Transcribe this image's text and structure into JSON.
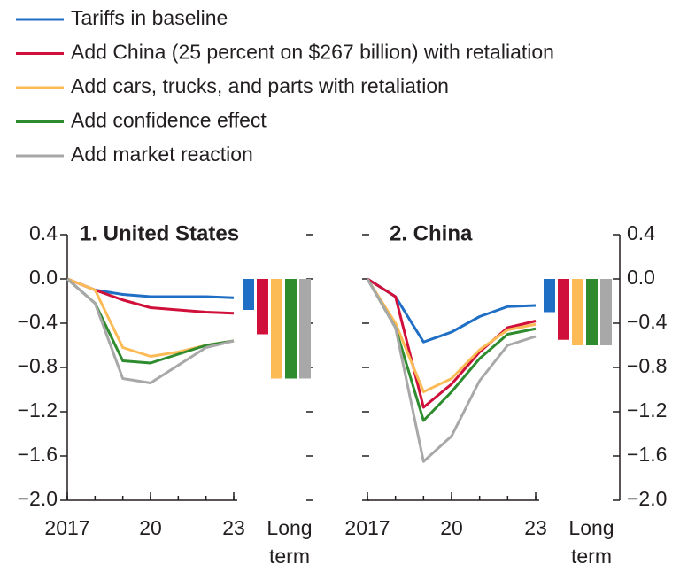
{
  "chart_data": [
    {
      "type": "line",
      "title": "1. United States",
      "yaxis_side": "left",
      "x": [
        2017,
        2018,
        2019,
        2020,
        2021,
        2022,
        2023
      ],
      "xlim": [
        2017,
        2023
      ],
      "xticks": [
        2017,
        {
          "value": 2020,
          "label": "20"
        },
        {
          "value": 2023,
          "label": "23"
        }
      ],
      "ylim": [
        -2.0,
        0.4
      ],
      "yticks": [
        0.4,
        {
          "value": 0,
          "label": "0.0"
        },
        {
          "value": -0.4,
          "label": "−0.4"
        },
        {
          "value": -0.8,
          "label": "−0.8"
        },
        {
          "value": -1.2,
          "label": "−1.2"
        },
        {
          "value": -1.6,
          "label": "−1.6"
        },
        {
          "value": -2.0,
          "label": "−2.0"
        }
      ],
      "long_term_label": "Long term",
      "series": [
        {
          "name": "Tariffs in baseline",
          "color": "#1f6fc5",
          "values": [
            0,
            -0.1,
            -0.14,
            -0.16,
            -0.16,
            -0.16,
            -0.17
          ],
          "long_term": -0.28
        },
        {
          "name": "Add China (25 percent on $267 billion) with retaliation",
          "color": "#d0103a",
          "values": [
            0,
            -0.1,
            -0.19,
            -0.26,
            -0.28,
            -0.3,
            -0.31
          ],
          "long_term": -0.5
        },
        {
          "name": "Add cars, trucks, and parts with retaliation",
          "color": "#fdbb55",
          "values": [
            0,
            -0.1,
            -0.62,
            -0.7,
            -0.66,
            -0.6,
            -0.56
          ],
          "long_term": -0.9
        },
        {
          "name": "Add confidence effect",
          "color": "#2e8b2e",
          "values": [
            0,
            -0.22,
            -0.74,
            -0.76,
            -0.68,
            -0.6,
            -0.56
          ],
          "long_term": -0.9
        },
        {
          "name": "Add market reaction",
          "color": "#a8a8a8",
          "values": [
            0,
            -0.22,
            -0.9,
            -0.94,
            -0.78,
            -0.62,
            -0.56
          ],
          "long_term": -0.9
        }
      ]
    },
    {
      "type": "line",
      "title": "2. China",
      "yaxis_side": "right",
      "x": [
        2017,
        2018,
        2019,
        2020,
        2021,
        2022,
        2023
      ],
      "xlim": [
        2017,
        2023
      ],
      "xticks": [
        2017,
        {
          "value": 2020,
          "label": "20"
        },
        {
          "value": 2023,
          "label": "23"
        }
      ],
      "ylim": [
        -2.0,
        0.4
      ],
      "yticks": [
        0.4,
        {
          "value": 0,
          "label": "0.0"
        },
        {
          "value": -0.4,
          "label": "−0.4"
        },
        {
          "value": -0.8,
          "label": "−0.8"
        },
        {
          "value": -1.2,
          "label": "−1.2"
        },
        {
          "value": -1.6,
          "label": "−1.6"
        },
        {
          "value": -2.0,
          "label": "−2.0"
        }
      ],
      "long_term_label": "Long term",
      "series": [
        {
          "color": "#1f6fc5",
          "values": [
            0,
            -0.16,
            -0.57,
            -0.48,
            -0.34,
            -0.25,
            -0.24
          ],
          "long_term": -0.3
        },
        {
          "color": "#d0103a",
          "values": [
            0,
            -0.16,
            -1.16,
            -0.95,
            -0.66,
            -0.44,
            -0.38
          ],
          "long_term": -0.55
        },
        {
          "color": "#fdbb55",
          "values": [
            0,
            -0.4,
            -1.02,
            -0.9,
            -0.64,
            -0.46,
            -0.41
          ],
          "long_term": -0.6
        },
        {
          "color": "#2e8b2e",
          "values": [
            0,
            -0.44,
            -1.28,
            -1.02,
            -0.72,
            -0.5,
            -0.45
          ],
          "long_term": -0.6
        },
        {
          "color": "#a8a8a8",
          "values": [
            0,
            -0.44,
            -1.65,
            -1.42,
            -0.92,
            -0.6,
            -0.52
          ],
          "long_term": -0.6
        }
      ]
    }
  ]
}
